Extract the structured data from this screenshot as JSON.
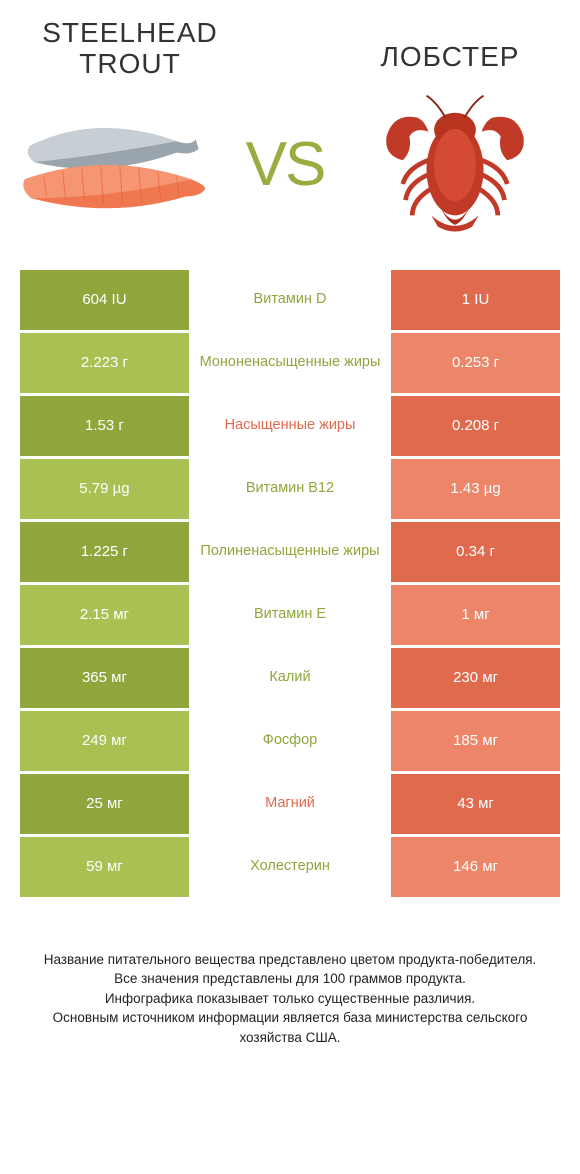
{
  "header": {
    "left_title": "Steelhead trout",
    "right_title": "Лобстер",
    "vs_label": "VS"
  },
  "colors": {
    "green_dark": "#8fa63d",
    "green_light": "#a9c052",
    "orange_dark": "#e06a4e",
    "orange_light": "#ed8569",
    "text_dark": "#222",
    "white": "#ffffff"
  },
  "rows": [
    {
      "label": "Витамин D",
      "left": "604 IU",
      "right": "1 IU",
      "winner": "left"
    },
    {
      "label": "Мононенасыщенные жиры",
      "left": "2.223 г",
      "right": "0.253 г",
      "winner": "left"
    },
    {
      "label": "Насыщенные жиры",
      "left": "1.53 г",
      "right": "0.208 г",
      "winner": "right"
    },
    {
      "label": "Витамин B12",
      "left": "5.79 µg",
      "right": "1.43 µg",
      "winner": "left"
    },
    {
      "label": "Полиненасыщенные жиры",
      "left": "1.225 г",
      "right": "0.34 г",
      "winner": "left"
    },
    {
      "label": "Витамин E",
      "left": "2.15 мг",
      "right": "1 мг",
      "winner": "left"
    },
    {
      "label": "Калий",
      "left": "365 мг",
      "right": "230 мг",
      "winner": "left"
    },
    {
      "label": "Фосфор",
      "left": "249 мг",
      "right": "185 мг",
      "winner": "left"
    },
    {
      "label": "Магний",
      "left": "25 мг",
      "right": "43 мг",
      "winner": "right"
    },
    {
      "label": "Холестерин",
      "left": "59 мг",
      "right": "146 мг",
      "winner": "left"
    }
  ],
  "footer": {
    "line1": "Название питательного вещества представлено цветом продукта-победителя.",
    "line2": "Все значения представлены для 100 граммов продукта.",
    "line3": "Инфографика показывает только существенные различия.",
    "line4": "Основным источником информации является база министерства сельского хозяйства США."
  }
}
